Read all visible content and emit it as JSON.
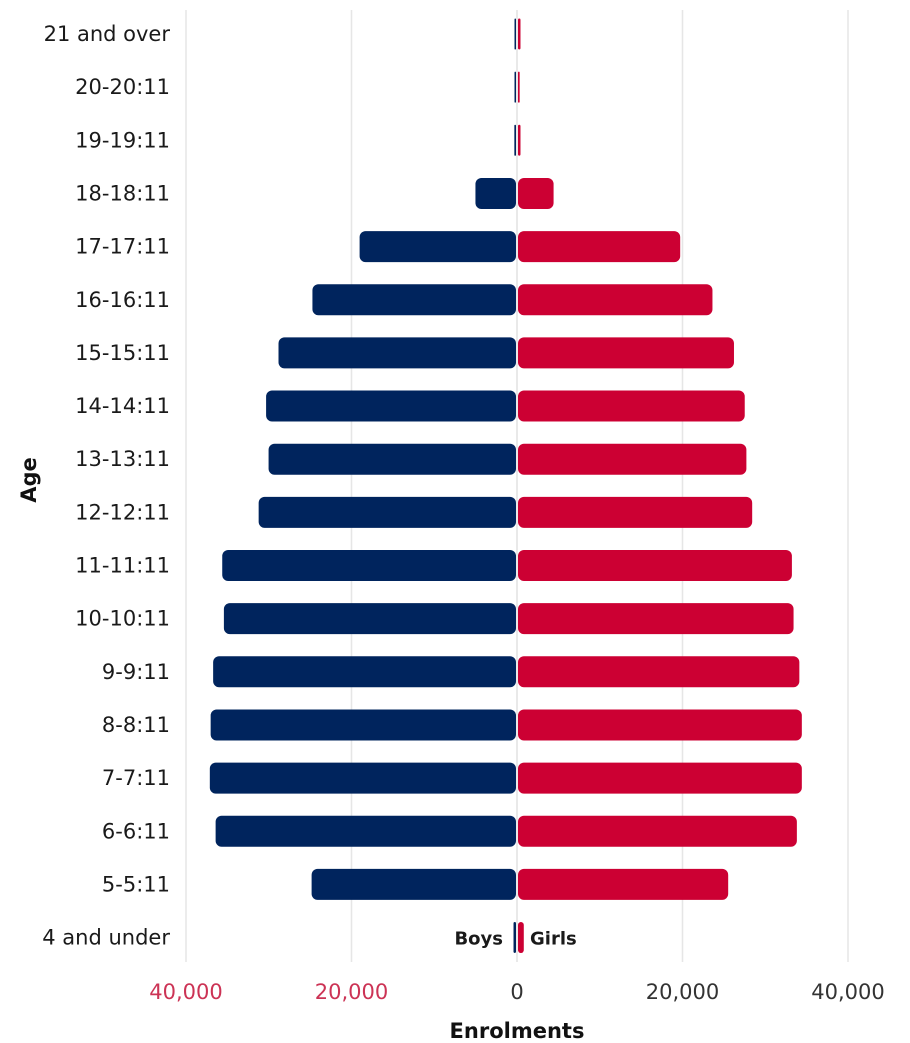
{
  "chart_data": {
    "type": "bar",
    "orientation": "horizontal-diverging",
    "title": "",
    "xlabel": "Enrolments",
    "ylabel": "Age",
    "xlim": [
      -40000,
      40000
    ],
    "xticks": [
      -40000,
      -20000,
      0,
      20000,
      40000
    ],
    "xtick_labels": [
      "40,000",
      "20,000",
      "0",
      "20,000",
      "40,000"
    ],
    "grid": true,
    "categories": [
      "21 and over",
      "20-20:11",
      "19-19:11",
      "18-18:11",
      "17-17:11",
      "16-16:11",
      "15-15:11",
      "14-14:11",
      "13-13:11",
      "12-12:11",
      "11-11:11",
      "10-10:11",
      "9-9:11",
      "8-8:11",
      "7-7:11",
      "6-6:11",
      "5-5:11",
      "4 and under"
    ],
    "series": [
      {
        "name": "Boys",
        "side": "left",
        "color": "#00245d",
        "values": [
          150,
          100,
          200,
          4900,
          18900,
          24600,
          28700,
          30200,
          29900,
          31100,
          35500,
          35300,
          36600,
          36900,
          37000,
          36300,
          24700,
          300
        ]
      },
      {
        "name": "Girls",
        "side": "right",
        "color": "#cc0033",
        "values": [
          300,
          200,
          300,
          4300,
          19600,
          23500,
          26100,
          27400,
          27600,
          28300,
          33100,
          33300,
          34000,
          34300,
          34300,
          33700,
          25400,
          700
        ]
      }
    ],
    "tick_colors": {
      "negative": "#cc3355",
      "positive": "#333333"
    }
  }
}
